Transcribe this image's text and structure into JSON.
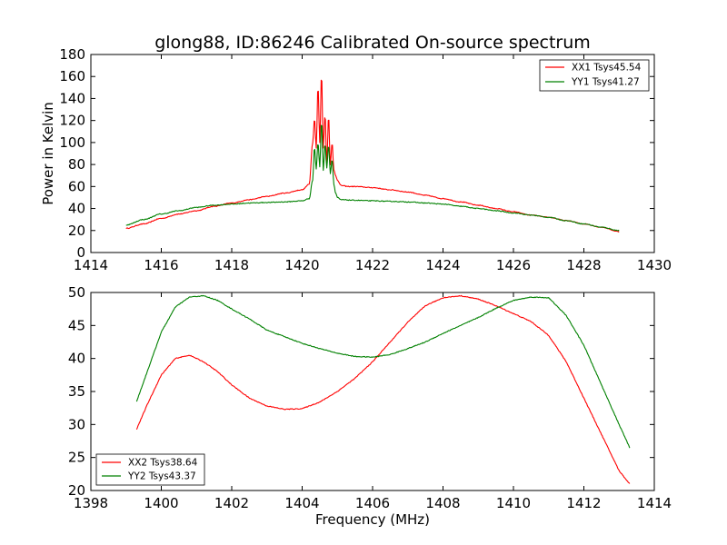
{
  "figure": {
    "title": "glong88, ID:86246 Calibrated On-source spectrum",
    "xlabel": "Frequency (MHz)"
  },
  "colors": {
    "red": "#ff0000",
    "green": "#008000",
    "axes": "#000000",
    "background": "#ffffff"
  },
  "chart_data": [
    {
      "type": "line",
      "title": "glong88, ID:86246 Calibrated On-source spectrum",
      "xlabel": "",
      "ylabel": "Power in Kelvin",
      "xlim": [
        1414,
        1430
      ],
      "ylim": [
        0,
        180
      ],
      "xticks": [
        "1414",
        "1416",
        "1418",
        "1420",
        "1422",
        "1424",
        "1426",
        "1428",
        "1430"
      ],
      "yticks": [
        "0",
        "20",
        "40",
        "60",
        "80",
        "100",
        "120",
        "140",
        "160",
        "180"
      ],
      "grid": false,
      "legend": "top-right",
      "series": [
        {
          "name": "XX1 Tsys45.54",
          "color": "#ff0000",
          "x": [
            1415.0,
            1415.5,
            1416.0,
            1416.5,
            1417.0,
            1417.5,
            1418.0,
            1418.5,
            1419.0,
            1419.5,
            1420.0,
            1420.2,
            1420.3,
            1420.35,
            1420.4,
            1420.45,
            1420.5,
            1420.55,
            1420.6,
            1420.65,
            1420.7,
            1420.75,
            1420.8,
            1420.85,
            1420.9,
            1420.95,
            1421.0,
            1421.1,
            1421.3,
            1421.5,
            1422.0,
            1422.5,
            1423.0,
            1423.5,
            1424.0,
            1424.5,
            1425.0,
            1425.5,
            1426.0,
            1426.5,
            1427.0,
            1427.5,
            1428.0,
            1428.5,
            1429.0
          ],
          "y": [
            22,
            26,
            31,
            35,
            38,
            42,
            45,
            48,
            51,
            54,
            57,
            62,
            100,
            122,
            95,
            152,
            100,
            163,
            95,
            126,
            80,
            125,
            80,
            100,
            75,
            70,
            66,
            61,
            60,
            60,
            59,
            57,
            55,
            52,
            49,
            46,
            43,
            40,
            37,
            34,
            32,
            29,
            26,
            23,
            19
          ],
          "curve": "smooth"
        },
        {
          "name": "YY1 Tsys41.27",
          "color": "#008000",
          "x": [
            1415.0,
            1415.5,
            1416.0,
            1416.5,
            1417.0,
            1417.5,
            1418.0,
            1418.5,
            1419.0,
            1419.5,
            1420.0,
            1420.2,
            1420.3,
            1420.35,
            1420.4,
            1420.45,
            1420.5,
            1420.55,
            1420.6,
            1420.65,
            1420.7,
            1420.75,
            1420.8,
            1420.85,
            1420.9,
            1420.95,
            1421.0,
            1421.1,
            1421.5,
            1422.0,
            1422.5,
            1423.0,
            1423.5,
            1424.0,
            1424.5,
            1425.0,
            1425.5,
            1426.0,
            1426.5,
            1427.0,
            1427.5,
            1428.0,
            1428.5,
            1429.0
          ],
          "y": [
            25,
            30,
            35,
            38,
            41,
            43,
            44,
            45,
            45.5,
            46,
            47,
            49,
            66,
            96,
            76,
            100,
            78,
            120,
            75,
            99,
            77,
            98,
            72,
            85,
            62,
            54,
            50,
            48,
            47.5,
            47,
            46.5,
            46,
            45,
            44,
            42,
            40,
            38,
            36,
            34,
            32,
            29,
            26,
            23,
            20
          ],
          "curve": "smooth"
        }
      ]
    },
    {
      "type": "line",
      "title": "",
      "xlabel": "Frequency (MHz)",
      "ylabel": "",
      "xlim": [
        1398,
        1414
      ],
      "ylim": [
        20,
        50
      ],
      "xticks": [
        "1398",
        "1400",
        "1402",
        "1404",
        "1406",
        "1408",
        "1410",
        "1412",
        "1414"
      ],
      "yticks": [
        "20",
        "25",
        "30",
        "35",
        "40",
        "45",
        "50"
      ],
      "grid": false,
      "legend": "bottom-left",
      "series": [
        {
          "name": "XX2 Tsys38.64",
          "color": "#ff0000",
          "x": [
            1399.3,
            1399.6,
            1400.0,
            1400.4,
            1400.8,
            1401.2,
            1401.6,
            1402.0,
            1402.5,
            1403.0,
            1403.5,
            1404.0,
            1404.5,
            1405.0,
            1405.5,
            1406.0,
            1406.5,
            1407.0,
            1407.5,
            1408.0,
            1408.5,
            1409.0,
            1409.5,
            1410.0,
            1410.5,
            1411.0,
            1411.5,
            1412.0,
            1412.5,
            1413.0,
            1413.3
          ],
          "y": [
            29.3,
            33,
            37.5,
            40,
            40.5,
            39.5,
            38,
            36,
            34,
            32.8,
            32.3,
            32.4,
            33.4,
            35,
            37,
            39.5,
            42.5,
            45.5,
            48,
            49.2,
            49.5,
            49,
            48,
            46.8,
            45.6,
            43.5,
            39.5,
            34,
            28.5,
            23,
            21
          ]
        },
        {
          "name": "YY2 Tsys43.37",
          "color": "#008000",
          "x": [
            1399.3,
            1399.6,
            1400.0,
            1400.4,
            1400.8,
            1401.2,
            1401.6,
            1402.0,
            1402.5,
            1403.0,
            1403.5,
            1404.0,
            1404.5,
            1405.0,
            1405.5,
            1406.0,
            1406.5,
            1407.0,
            1407.5,
            1408.0,
            1408.5,
            1409.0,
            1409.5,
            1410.0,
            1410.5,
            1411.0,
            1411.5,
            1412.0,
            1412.5,
            1413.0,
            1413.3
          ],
          "y": [
            33.5,
            38,
            44,
            47.8,
            49.3,
            49.5,
            48.8,
            47.5,
            46,
            44.3,
            43.3,
            42.3,
            41.5,
            40.8,
            40.3,
            40.2,
            40.6,
            41.5,
            42.5,
            43.8,
            45,
            46.2,
            47.6,
            48.8,
            49.3,
            49.2,
            46.5,
            42,
            36,
            30,
            26.5
          ]
        }
      ]
    }
  ]
}
